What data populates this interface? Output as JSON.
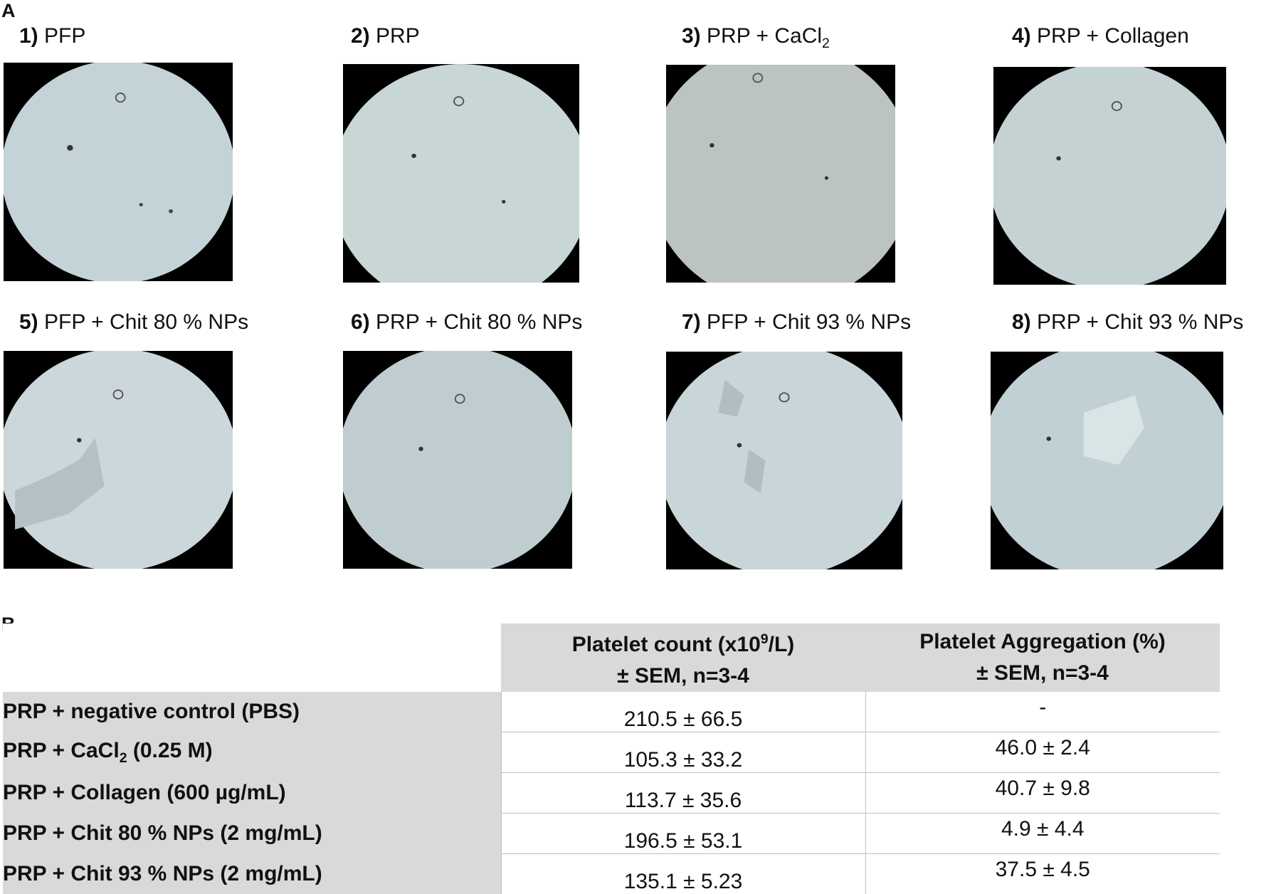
{
  "panel_a_label": "A",
  "panel_b_label": "B",
  "micrographs": [
    {
      "number": "1)",
      "label": "PFP"
    },
    {
      "number": "2)",
      "label": "PRP"
    },
    {
      "number": "3)",
      "label_prefix": "PRP + CaCl",
      "label_sub": "2"
    },
    {
      "number": "4)",
      "label": "PRP + Collagen"
    },
    {
      "number": "5)",
      "label": "PFP + Chit 80 % NPs"
    },
    {
      "number": "6)",
      "label": "PRP + Chit 80 % NPs"
    },
    {
      "number": "7)",
      "label": "PFP + Chit 93 % NPs"
    },
    {
      "number": "8)",
      "label": "PRP + Chit 93 % NPs"
    }
  ],
  "table": {
    "col1_header_pre": "Platelet count (x10",
    "col1_header_sup": "9",
    "col1_header_post": "/L)",
    "col1_header_line2": "± SEM, n=3-4",
    "col2_header_line1": "Platelet Aggregation (%)",
    "col2_header_line2": "± SEM, n=3-4",
    "rows": [
      {
        "label": "PRP + negative control (PBS)",
        "count": "210.5 ± 66.5",
        "aggregation": "-"
      },
      {
        "label_pre": "PRP + CaCl",
        "label_sub": "2",
        "label_post": " (0.25 M)",
        "count": "105.3 ± 33.2",
        "aggregation": "46.0 ± 2.4"
      },
      {
        "label": "PRP + Collagen (600 µg/mL)",
        "count": "113.7 ± 35.6",
        "aggregation": "40.7 ± 9.8"
      },
      {
        "label": "PRP + Chit 80 % NPs (2 mg/mL)",
        "count": "196.5 ± 53.1",
        "aggregation": "4.9 ± 4.4"
      },
      {
        "label": "PRP + Chit 93 % NPs (2 mg/mL)",
        "count": "135.1 ± 5.23",
        "aggregation": "37.5 ± 4.5"
      }
    ]
  }
}
